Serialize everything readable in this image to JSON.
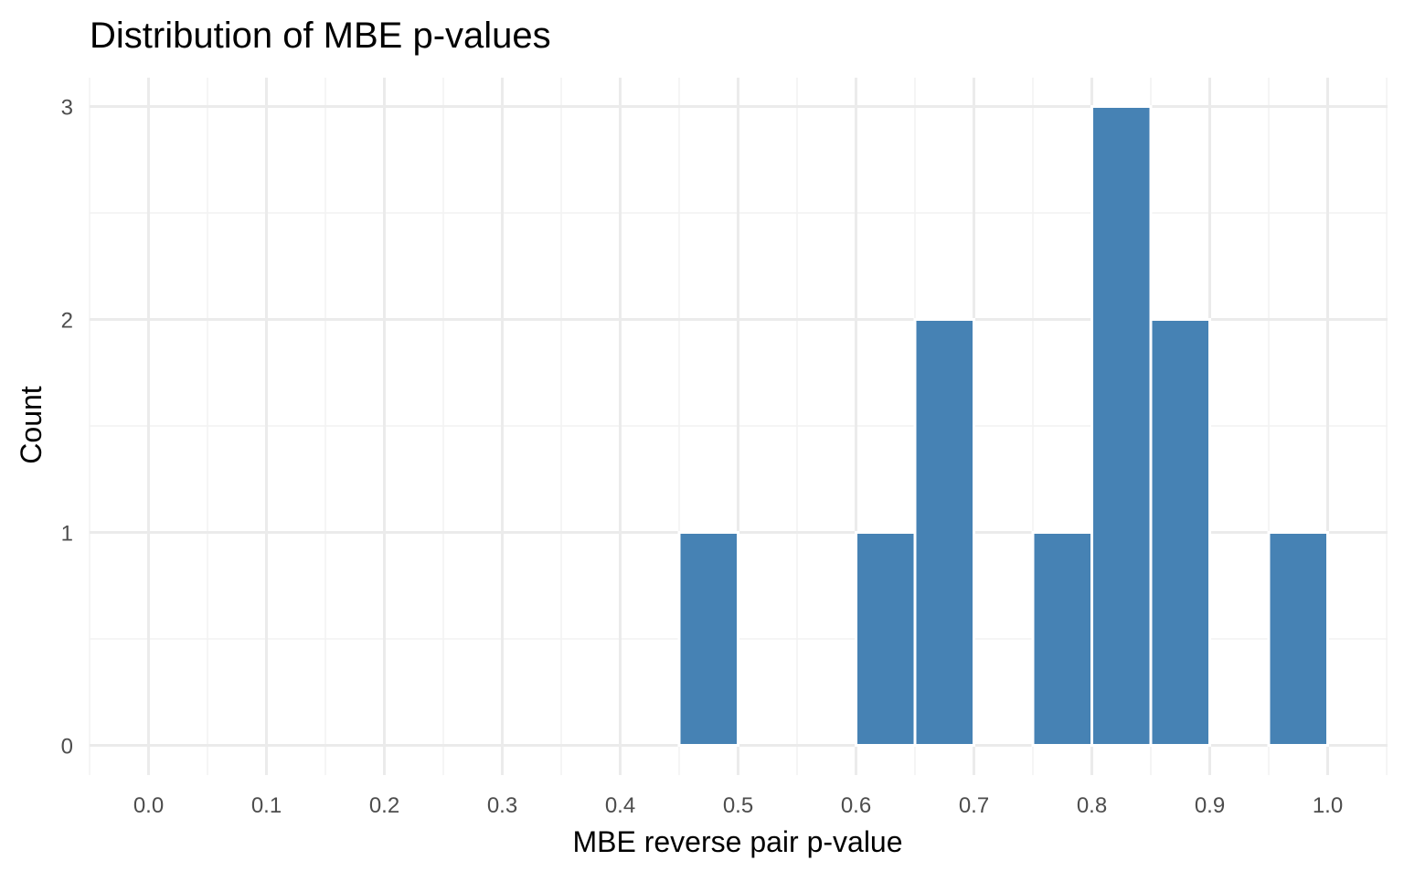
{
  "chart_data": {
    "type": "bar",
    "title": "Distribution of MBE p-values",
    "xlabel": "MBE reverse pair p-value",
    "ylabel": "Count",
    "bin_width": 0.05,
    "bins": [
      {
        "start": 0.45,
        "end": 0.5,
        "count": 1
      },
      {
        "start": 0.6,
        "end": 0.65,
        "count": 1
      },
      {
        "start": 0.65,
        "end": 0.7,
        "count": 2
      },
      {
        "start": 0.75,
        "end": 0.8,
        "count": 1
      },
      {
        "start": 0.8,
        "end": 0.85,
        "count": 3
      },
      {
        "start": 0.85,
        "end": 0.9,
        "count": 2
      },
      {
        "start": 0.95,
        "end": 1.0,
        "count": 1
      }
    ],
    "xlim": [
      -0.05,
      1.05
    ],
    "ylim": [
      0,
      3.15
    ],
    "x_ticks": [
      "0.0",
      "0.1",
      "0.2",
      "0.3",
      "0.4",
      "0.5",
      "0.6",
      "0.7",
      "0.8",
      "0.9",
      "1.0"
    ],
    "y_ticks": [
      "0",
      "1",
      "2",
      "3"
    ],
    "grid": true,
    "legend": "none",
    "bar_color": "#4682b4",
    "bar_outline": "#ffffff",
    "grid_major_color": "#ebebeb",
    "grid_minor_color": "#f2f2f2"
  }
}
